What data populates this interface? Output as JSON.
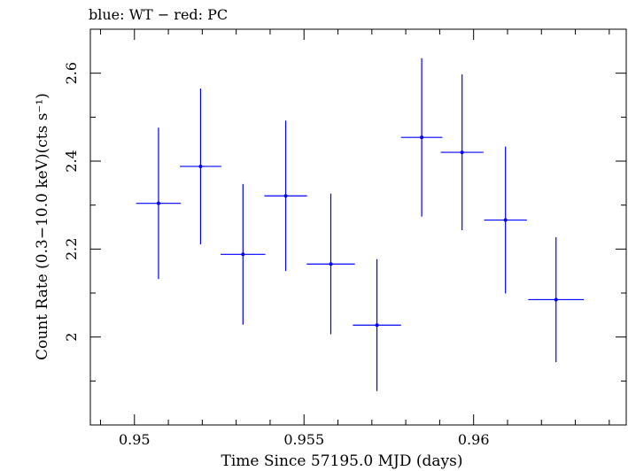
{
  "chart_data": {
    "type": "scatter",
    "title": "blue: WT − red: PC",
    "xlabel": "Time Since 57195.0 MJD (days)",
    "ylabel": "Count Rate (0.3−10.0 keV)(cts s⁻¹)",
    "xlim": [
      0.9487,
      0.9645
    ],
    "ylim": [
      1.8,
      2.7
    ],
    "xticks": [
      0.95,
      0.955,
      0.96
    ],
    "xtick_labels": [
      "0.95",
      "0.955",
      "0.96"
    ],
    "yticks": [
      2.0,
      2.2,
      2.4,
      2.6
    ],
    "ytick_labels": [
      "2",
      "2.2",
      "2.4",
      "2.6"
    ],
    "grid": false,
    "error_bars": true,
    "series": [
      {
        "color": "#0000ff",
        "points": [
          {
            "x": 0.95071,
            "xerr": 0.00066,
            "y": 2.304,
            "yerr": 0.172
          },
          {
            "x": 0.95195,
            "xerr": 0.00061,
            "y": 2.388,
            "yerr": 0.177
          },
          {
            "x": 0.9532,
            "xerr": 0.00066,
            "y": 2.188,
            "yerr": 0.16
          },
          {
            "x": 0.95446,
            "xerr": 0.00063,
            "y": 2.321,
            "yerr": 0.171
          },
          {
            "x": 0.95579,
            "xerr": 0.00071,
            "y": 2.166,
            "yerr": 0.16
          },
          {
            "x": 0.95715,
            "xerr": 0.00071,
            "y": 2.027,
            "yerr": 0.15
          },
          {
            "x": 0.95847,
            "xerr": 0.00061,
            "y": 2.454,
            "yerr": 0.18
          },
          {
            "x": 0.95966,
            "xerr": 0.00063,
            "y": 2.42,
            "yerr": 0.177
          },
          {
            "x": 0.96094,
            "xerr": 0.00063,
            "y": 2.266,
            "yerr": 0.167
          },
          {
            "x": 0.96243,
            "xerr": 0.00082,
            "y": 2.085,
            "yerr": 0.142
          }
        ]
      }
    ]
  }
}
